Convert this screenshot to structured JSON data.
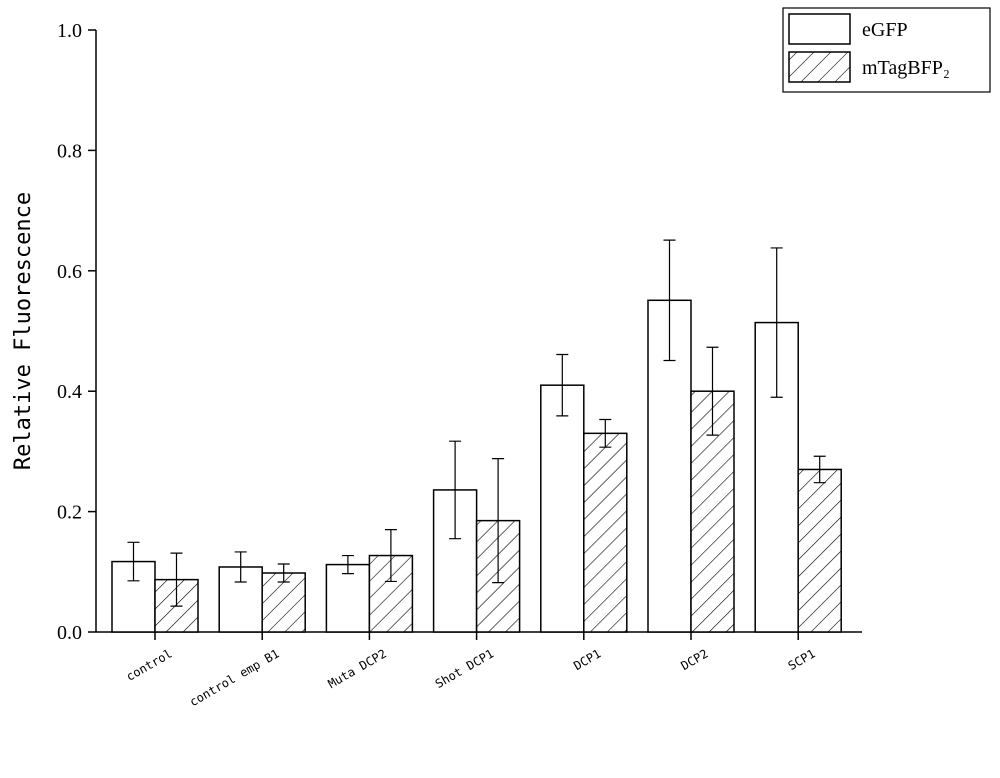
{
  "chart_data": {
    "type": "bar",
    "y_label": "Relative Fluorescence",
    "categories": [
      "control",
      "control emp B1",
      "Muta DCP2",
      "Shot DCP1",
      "DCP1",
      "DCP2",
      "SCP1"
    ],
    "series": [
      {
        "name": "eGFP",
        "color": "#ffffff",
        "hatch": false,
        "values": [
          0.117,
          0.108,
          0.112,
          0.236,
          0.41,
          0.551,
          0.514
        ],
        "errors": [
          0.032,
          0.025,
          0.015,
          0.081,
          0.051,
          0.1,
          0.124
        ]
      },
      {
        "name": "mTagBFP₂",
        "color": "#ffffff",
        "hatch": true,
        "values": [
          0.087,
          0.098,
          0.127,
          0.185,
          0.33,
          0.4,
          0.27
        ],
        "errors": [
          0.044,
          0.015,
          0.043,
          0.103,
          0.023,
          0.073,
          0.022
        ]
      }
    ],
    "ylim": [
      0,
      1.0
    ],
    "yticks": [
      {
        "value": 0,
        "label": "0.0"
      },
      0.2,
      0.4,
      0.6,
      0.8,
      {
        "value": 1.0,
        "label": "1.0"
      }
    ],
    "legend": "top-right"
  }
}
